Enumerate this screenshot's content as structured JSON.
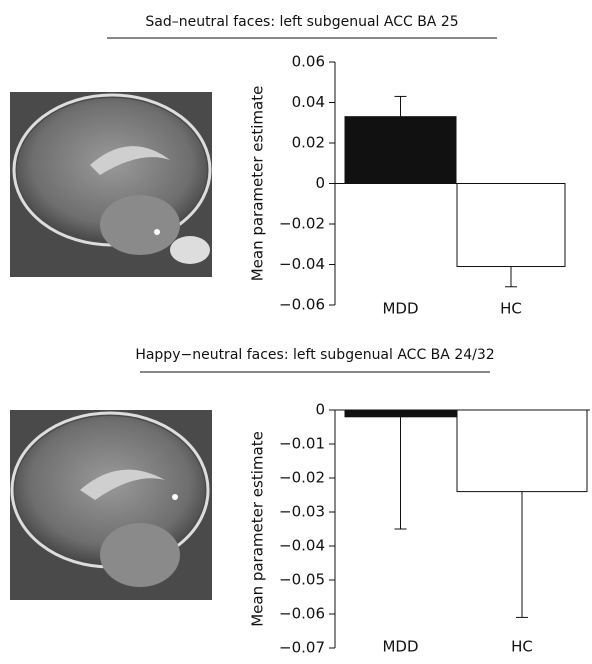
{
  "chart_data": [
    {
      "type": "bar",
      "title": "Sad–neutral faces: left subgenual ACC BA 25",
      "y_label": "Mean parameter estimate",
      "categories": [
        "MDD",
        "HC"
      ],
      "values": [
        0.033,
        -0.041
      ],
      "errors": [
        0.01,
        0.01
      ],
      "colors": [
        "#111111",
        "#ffffff"
      ],
      "ylim": [
        -0.06,
        0.06
      ],
      "yticks": [
        {
          "value": -0.06,
          "label": "−0.06"
        },
        {
          "value": -0.04,
          "label": "−0.04"
        },
        {
          "value": -0.02,
          "label": "−0.02"
        },
        0,
        0.02,
        0.04,
        0.06
      ]
    },
    {
      "type": "bar",
      "title": "Happy−neutral faces: left subgenual ACC BA 24/32",
      "y_label": "Mean parameter estimate",
      "categories": [
        "MDD",
        "HC"
      ],
      "values": [
        -0.002,
        -0.024
      ],
      "errors": [
        0.033,
        0.037
      ],
      "colors": [
        "#111111",
        "#ffffff"
      ],
      "ylim": [
        -0.07,
        0
      ],
      "yticks": [
        {
          "value": -0.07,
          "label": "−0.07"
        },
        {
          "value": -0.06,
          "label": "−0.06"
        },
        {
          "value": -0.05,
          "label": "−0.05"
        },
        {
          "value": -0.04,
          "label": "−0.04"
        },
        {
          "value": -0.03,
          "label": "−0.03"
        },
        {
          "value": -0.02,
          "label": "−0.02"
        },
        {
          "value": -0.01,
          "label": "−0.01"
        },
        0
      ]
    }
  ]
}
